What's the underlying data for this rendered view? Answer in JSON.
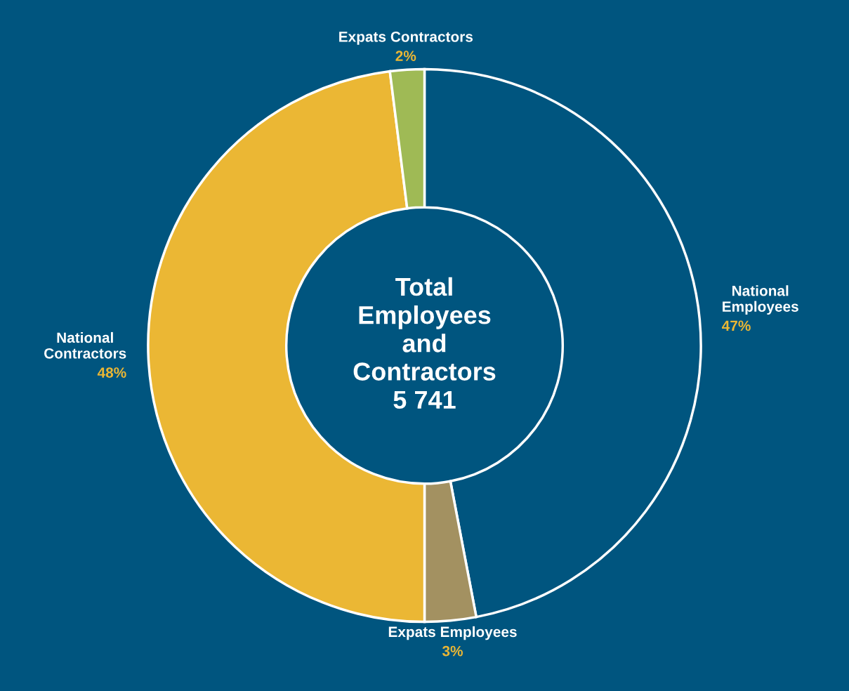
{
  "chart_data": {
    "type": "donut",
    "categories": [
      "National Employees",
      "Expats Employees",
      "National Contractors",
      "Expats Contractors"
    ],
    "values": [
      47,
      3,
      48,
      2
    ],
    "colors": [
      "#00557f",
      "#a39161",
      "#ebb734",
      "#9fba55"
    ],
    "value_labels": [
      "47%",
      "3%",
      "48%",
      "2%"
    ],
    "annotations": [
      "Total\nEmployees\nand\nContractors\n5 741"
    ],
    "legend": false
  }
}
